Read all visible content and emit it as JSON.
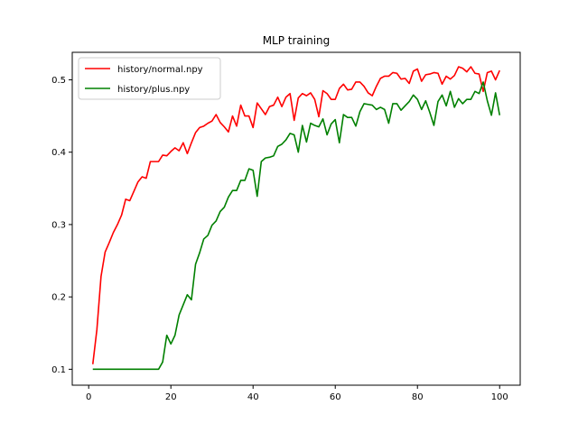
{
  "chart_data": {
    "type": "line",
    "title": "MLP training",
    "xlabel": "",
    "ylabel": "",
    "xlim": [
      -4,
      105
    ],
    "ylim": [
      0.078,
      0.538
    ],
    "xticks": [
      0,
      20,
      40,
      60,
      80,
      100
    ],
    "yticks": [
      0.1,
      0.2,
      0.3,
      0.4,
      0.5
    ],
    "grid": false,
    "legend_position": "top-left",
    "series": [
      {
        "name": "history/normal.npy",
        "color": "#ff0000",
        "x": [
          1,
          2,
          3,
          4,
          5,
          6,
          7,
          8,
          9,
          10,
          11,
          12,
          13,
          14,
          15,
          16,
          17,
          18,
          19,
          20,
          21,
          22,
          23,
          24,
          25,
          26,
          27,
          28,
          29,
          30,
          31,
          32,
          33,
          34,
          35,
          36,
          37,
          38,
          39,
          40,
          41,
          42,
          43,
          44,
          45,
          46,
          47,
          48,
          49,
          50,
          51,
          52,
          53,
          54,
          55,
          56,
          57,
          58,
          59,
          60,
          61,
          62,
          63,
          64,
          65,
          66,
          67,
          68,
          69,
          70,
          71,
          72,
          73,
          74,
          75,
          76,
          77,
          78,
          79,
          80,
          81,
          82,
          83,
          84,
          85,
          86,
          87,
          88,
          89,
          90,
          91,
          92,
          93,
          94,
          95,
          96,
          97,
          98,
          99,
          100
        ],
        "y": [
          0.107,
          0.155,
          0.228,
          0.262,
          0.275,
          0.289,
          0.3,
          0.313,
          0.335,
          0.333,
          0.346,
          0.359,
          0.366,
          0.364,
          0.387,
          0.387,
          0.387,
          0.396,
          0.395,
          0.401,
          0.406,
          0.402,
          0.413,
          0.398,
          0.413,
          0.427,
          0.434,
          0.436,
          0.44,
          0.443,
          0.452,
          0.441,
          0.435,
          0.428,
          0.45,
          0.436,
          0.465,
          0.45,
          0.45,
          0.434,
          0.468,
          0.46,
          0.452,
          0.463,
          0.465,
          0.476,
          0.463,
          0.476,
          0.481,
          0.444,
          0.475,
          0.481,
          0.478,
          0.482,
          0.473,
          0.449,
          0.485,
          0.481,
          0.473,
          0.473,
          0.488,
          0.494,
          0.486,
          0.487,
          0.497,
          0.497,
          0.491,
          0.482,
          0.478,
          0.491,
          0.502,
          0.505,
          0.505,
          0.51,
          0.509,
          0.501,
          0.502,
          0.495,
          0.512,
          0.515,
          0.498,
          0.507,
          0.508,
          0.51,
          0.509,
          0.494,
          0.505,
          0.501,
          0.506,
          0.518,
          0.516,
          0.511,
          0.518,
          0.509,
          0.508,
          0.484,
          0.51,
          0.512,
          0.5,
          0.513
        ]
      },
      {
        "name": "history/plus.npy",
        "color": "#008000",
        "x": [
          1,
          2,
          3,
          4,
          5,
          6,
          7,
          8,
          9,
          10,
          11,
          12,
          13,
          14,
          15,
          16,
          17,
          18,
          19,
          20,
          21,
          22,
          23,
          24,
          25,
          26,
          27,
          28,
          29,
          30,
          31,
          32,
          33,
          34,
          35,
          36,
          37,
          38,
          39,
          40,
          41,
          42,
          43,
          44,
          45,
          46,
          47,
          48,
          49,
          50,
          51,
          52,
          53,
          54,
          55,
          56,
          57,
          58,
          59,
          60,
          61,
          62,
          63,
          64,
          65,
          66,
          67,
          68,
          69,
          70,
          71,
          72,
          73,
          74,
          75,
          76,
          77,
          78,
          79,
          80,
          81,
          82,
          83,
          84,
          85,
          86,
          87,
          88,
          89,
          90,
          91,
          92,
          93,
          94,
          95,
          96,
          97,
          98,
          99,
          100
        ],
        "y": [
          0.1,
          0.1,
          0.1,
          0.1,
          0.1,
          0.1,
          0.1,
          0.1,
          0.1,
          0.1,
          0.1,
          0.1,
          0.1,
          0.1,
          0.1,
          0.1,
          0.1,
          0.11,
          0.147,
          0.135,
          0.147,
          0.175,
          0.189,
          0.203,
          0.196,
          0.245,
          0.261,
          0.28,
          0.285,
          0.299,
          0.305,
          0.318,
          0.324,
          0.338,
          0.347,
          0.347,
          0.361,
          0.361,
          0.377,
          0.375,
          0.339,
          0.387,
          0.392,
          0.393,
          0.395,
          0.408,
          0.411,
          0.417,
          0.426,
          0.424,
          0.4,
          0.437,
          0.414,
          0.44,
          0.437,
          0.435,
          0.446,
          0.424,
          0.439,
          0.445,
          0.413,
          0.452,
          0.448,
          0.448,
          0.436,
          0.456,
          0.467,
          0.466,
          0.465,
          0.459,
          0.462,
          0.459,
          0.44,
          0.467,
          0.467,
          0.458,
          0.464,
          0.47,
          0.479,
          0.473,
          0.459,
          0.471,
          0.455,
          0.437,
          0.47,
          0.479,
          0.464,
          0.484,
          0.462,
          0.474,
          0.467,
          0.473,
          0.473,
          0.484,
          0.481,
          0.497,
          0.471,
          0.451,
          0.482,
          0.451
        ]
      }
    ]
  }
}
